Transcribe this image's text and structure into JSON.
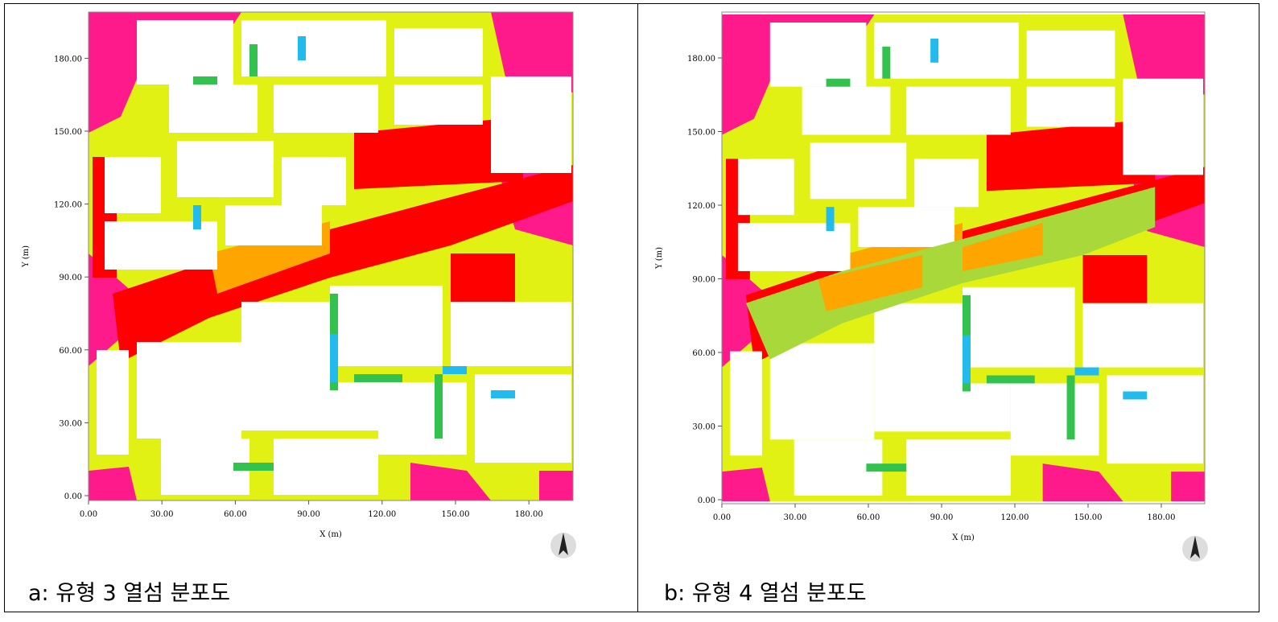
{
  "panels": [
    {
      "caption": "a: 유형 3 열섬 분포도",
      "x_label": "X (m)",
      "y_label": "Y (m)",
      "x_ticks": [
        "0.00",
        "30.00",
        "60.00",
        "90.00",
        "120.00",
        "150.00",
        "180.00"
      ],
      "y_ticks": [
        "0.00",
        "30.00",
        "60.00",
        "90.00",
        "120.00",
        "150.00",
        "180.00"
      ]
    },
    {
      "caption": "b: 유형 4 열섬 분포도",
      "x_label": "X (m)",
      "y_label": "Y (m)",
      "x_ticks": [
        "0.00",
        "30.00",
        "60.00",
        "90.00",
        "120.00",
        "150.00",
        "180.00"
      ],
      "y_ticks": [
        "0.00",
        "30.00",
        "60.00",
        "90.00",
        "120.00",
        "150.00",
        "180.00"
      ]
    }
  ]
}
